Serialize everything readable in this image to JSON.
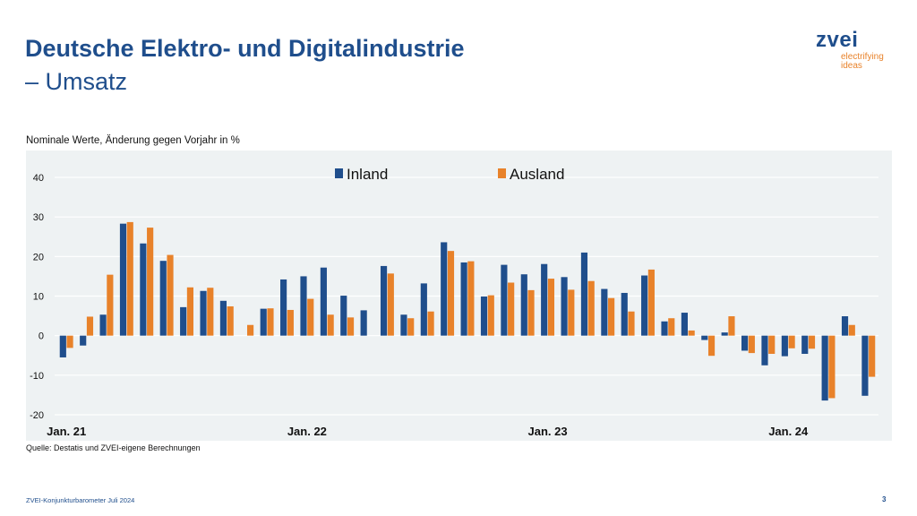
{
  "header": {
    "title": "Deutsche Elektro- und Digitalindustrie",
    "subtitle": "– Umsatz"
  },
  "logo": {
    "word": "zvei",
    "tagline_1": "electrifying",
    "tagline_2": "ideas"
  },
  "chart_caption": "Nominale Werte, Änderung gegen Vorjahr in %",
  "source": "Quelle: Destatis und ZVEI-eigene Berechnungen",
  "footer": {
    "text": "ZVEI-Konjunkturbarometer Juli 2024",
    "page": "3"
  },
  "colors": {
    "inland": "#1f4e8c",
    "ausland": "#e8822a",
    "plot_bg": "#eef2f3",
    "grid": "#ffffff"
  },
  "chart_data": {
    "type": "bar",
    "title": "",
    "ylim": [
      -20,
      40
    ],
    "yticks": [
      40,
      30,
      20,
      10,
      0,
      -10,
      -20
    ],
    "grid": true,
    "legend": "top-center",
    "x_labels": [
      {
        "index": 0,
        "label": "Jan. 21"
      },
      {
        "index": 12,
        "label": "Jan. 22"
      },
      {
        "index": 24,
        "label": "Jan. 23"
      },
      {
        "index": 36,
        "label": "Jan. 24"
      }
    ],
    "categories": [
      "Jan 21",
      "Feb 21",
      "Mär 21",
      "Apr 21",
      "Mai 21",
      "Jun 21",
      "Jul 21",
      "Aug 21",
      "Sep 21",
      "Okt 21",
      "Nov 21",
      "Dez 21",
      "Jan 22",
      "Feb 22",
      "Mär 22",
      "Apr 22",
      "Mai 22",
      "Jun 22",
      "Jul 22",
      "Aug 22",
      "Sep 22",
      "Okt 22",
      "Nov 22",
      "Dez 22",
      "Jan 23",
      "Feb 23",
      "Mär 23",
      "Apr 23",
      "Mai 23",
      "Jun 23",
      "Jul 23",
      "Aug 23",
      "Sep 23",
      "Okt 23",
      "Nov 23",
      "Dez 23",
      "Jan 24",
      "Feb 24",
      "Mär 24",
      "Apr 24",
      "Mai 24"
    ],
    "series": [
      {
        "name": "Inland",
        "color": "#1f4e8c",
        "values": [
          -5.5,
          -2.5,
          5.3,
          28.3,
          23.3,
          18.9,
          7.2,
          11.3,
          8.8,
          0,
          6.8,
          14.2,
          15.0,
          17.2,
          10.1,
          6.4,
          17.6,
          5.3,
          13.2,
          23.6,
          18.5,
          9.9,
          17.9,
          15.5,
          18.1,
          14.8,
          21.0,
          11.8,
          10.8,
          15.2,
          3.6,
          5.8,
          -1.1,
          0.8,
          -3.8,
          -7.5,
          -5.2,
          -4.6,
          -16.4,
          4.9,
          -15.2
        ]
      },
      {
        "name": "Ausland",
        "color": "#e8822a",
        "values": [
          -3.1,
          4.8,
          15.4,
          28.7,
          27.3,
          20.4,
          12.2,
          12.1,
          7.4,
          2.7,
          6.9,
          6.5,
          9.3,
          5.3,
          4.6,
          0,
          15.7,
          4.4,
          6.1,
          21.4,
          18.8,
          10.2,
          13.4,
          11.5,
          14.4,
          11.6,
          13.8,
          9.5,
          6.1,
          16.7,
          4.4,
          1.3,
          -5.1,
          4.9,
          -4.4,
          -4.6,
          -3.2,
          -3.3,
          -15.8,
          2.7,
          -10.4
        ]
      }
    ]
  }
}
